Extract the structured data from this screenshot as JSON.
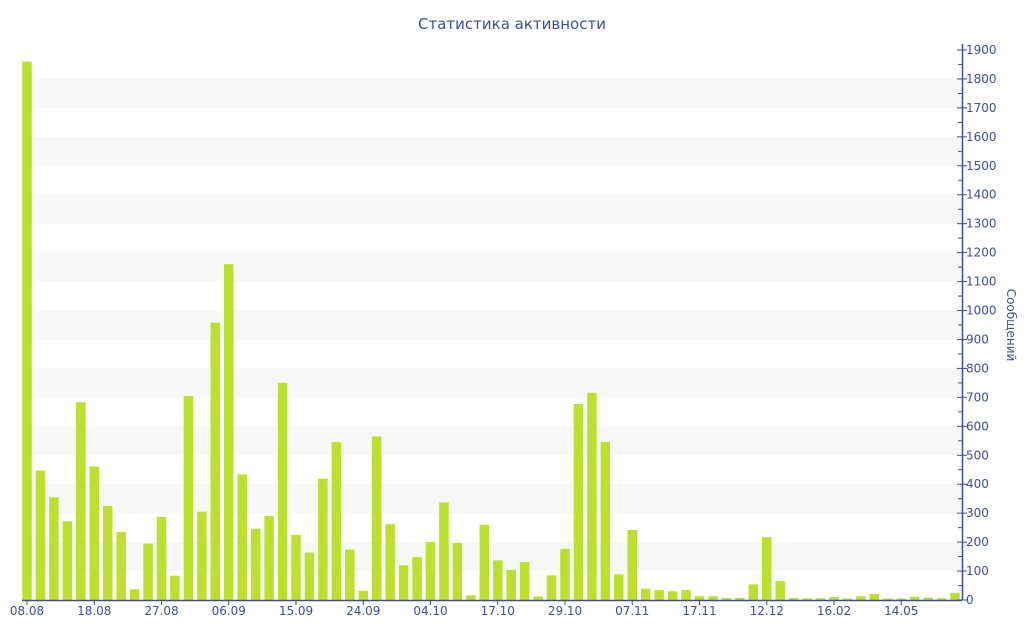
{
  "chart_data": {
    "type": "bar",
    "title": "Статистика активности",
    "ylabel": "Сообщений",
    "xlabel": "",
    "ylim": [
      0,
      1900
    ],
    "y_axis_position": "right",
    "y_ticks": [
      0,
      100,
      200,
      300,
      400,
      500,
      600,
      700,
      800,
      900,
      1000,
      1100,
      1200,
      1300,
      1400,
      1500,
      1600,
      1700,
      1800,
      1900
    ],
    "grid": "alternating horizontal bands",
    "x_tick_labels": [
      {
        "index": 0,
        "label": "08.08"
      },
      {
        "index": 5,
        "label": "18.08"
      },
      {
        "index": 10,
        "label": "27.08"
      },
      {
        "index": 15,
        "label": "06.09"
      },
      {
        "index": 20,
        "label": "15.09"
      },
      {
        "index": 25,
        "label": "24.09"
      },
      {
        "index": 30,
        "label": "04.10"
      },
      {
        "index": 35,
        "label": "17.10"
      },
      {
        "index": 40,
        "label": "29.10"
      },
      {
        "index": 45,
        "label": "07.11"
      },
      {
        "index": 50,
        "label": "17.11"
      },
      {
        "index": 55,
        "label": "12.12"
      },
      {
        "index": 60,
        "label": "16.02"
      },
      {
        "index": 65,
        "label": "14.05"
      }
    ],
    "values": [
      1860,
      447,
      355,
      272,
      683,
      461,
      325,
      235,
      37,
      195,
      287,
      84,
      705,
      305,
      958,
      1160,
      434,
      246,
      290,
      750,
      225,
      164,
      419,
      546,
      174,
      32,
      565,
      262,
      120,
      148,
      200,
      337,
      197,
      16,
      260,
      137,
      104,
      131,
      12,
      85,
      177,
      677,
      716,
      546,
      89,
      242,
      39,
      34,
      30,
      34,
      13,
      13,
      7,
      7,
      54,
      217,
      66,
      7,
      6,
      6,
      10,
      5,
      13,
      21,
      5,
      5,
      11,
      8,
      6,
      25
    ],
    "colors": {
      "bar": "#bde02e",
      "axis": "#3d4f9a",
      "band": "#f7f7f7"
    }
  }
}
